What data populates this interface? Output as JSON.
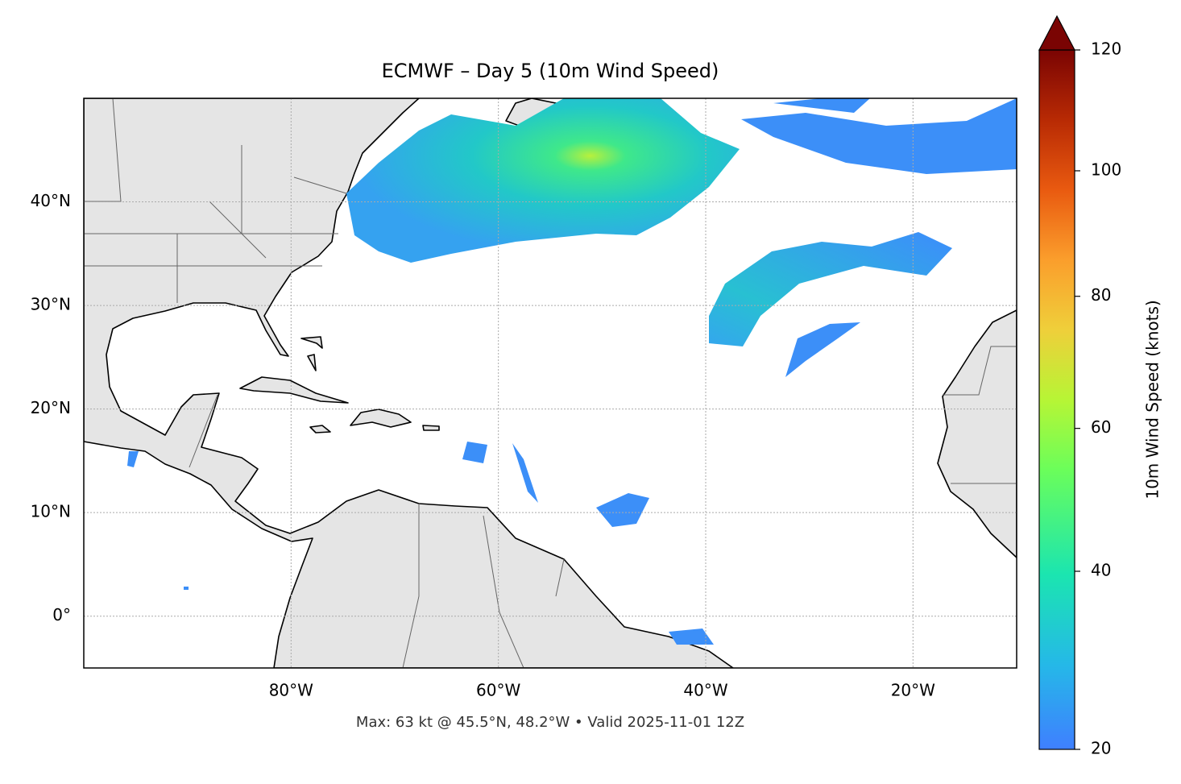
{
  "chart_data": {
    "type": "map",
    "title": "ECMWF – Day 5 (10m Wind Speed)",
    "footer": "Max: 63 kt @ 45.5°N, 48.2°W • Valid 2025-11-01 12Z",
    "xlim": [
      -100,
      -10
    ],
    "ylim": [
      -5,
      50
    ],
    "xticks": [
      {
        "value": -80,
        "label": "80°W"
      },
      {
        "value": -60,
        "label": "60°W"
      },
      {
        "value": -40,
        "label": "40°W"
      },
      {
        "value": -20,
        "label": "20°W"
      }
    ],
    "yticks": [
      {
        "value": 0,
        "label": "0°"
      },
      {
        "value": 10,
        "label": "10°N"
      },
      {
        "value": 20,
        "label": "20°N"
      },
      {
        "value": 30,
        "label": "30°N"
      },
      {
        "value": 40,
        "label": "40°N"
      }
    ],
    "grid": true,
    "colorbar": {
      "label": "10m Wind Speed (knots)",
      "lim": [
        20,
        120
      ],
      "ticks": [
        20,
        40,
        60,
        80,
        100,
        120
      ],
      "norm": "power",
      "gamma": 0.85,
      "colormap": "turbo"
    }
  }
}
